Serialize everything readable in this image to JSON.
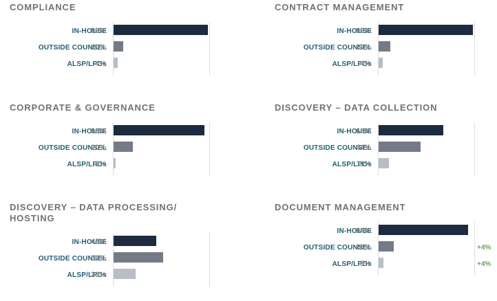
{
  "colors": {
    "in_house": "#1c2b3f",
    "outside_counsel": "#737b86",
    "alsp": "#b7bec5",
    "delta": "#6aa84f"
  },
  "chart_data": [
    {
      "type": "bar",
      "title": "COMPLIANCE",
      "categories": [
        "IN-HOUSE",
        "OUTSIDE COUNSEL",
        "ALSP/LPOs"
      ],
      "values": [
        99,
        10,
        4
      ],
      "value_labels": [
        "99%",
        "10%",
        "4%"
      ],
      "deltas": [
        "",
        "",
        ""
      ]
    },
    {
      "type": "bar",
      "title": "CONTRACT MANAGEMENT",
      "categories": [
        "IN-HOUSE",
        "OUTSIDE COUNSEL",
        "ALSP/LPOs"
      ],
      "values": [
        99,
        12,
        4
      ],
      "value_labels": [
        "99%",
        "12%",
        "4%"
      ],
      "deltas": [
        "",
        "",
        ""
      ]
    },
    {
      "type": "bar",
      "title": "CORPORATE & GOVERNANCE",
      "categories": [
        "IN-HOUSE",
        "OUTSIDE COUNSEL",
        "ALSP/LPOs"
      ],
      "values": [
        96,
        20,
        2
      ],
      "value_labels": [
        "96%",
        "20%",
        "2%"
      ],
      "deltas": [
        "",
        "",
        ""
      ]
    },
    {
      "type": "bar",
      "title": "DISCOVERY – DATA COLLECTION",
      "categories": [
        "IN-HOUSE",
        "OUTSIDE COUNSEL",
        "ALSP/LPOs"
      ],
      "values": [
        68,
        44,
        11
      ],
      "value_labels": [
        "68%",
        "44%",
        "11%"
      ],
      "deltas": [
        "",
        "",
        ""
      ]
    },
    {
      "type": "bar",
      "title": "DISCOVERY – DATA PROCESSING/ HOSTING",
      "categories": [
        "IN-HOUSE",
        "OUTSIDE COUNSEL",
        "ALSP/LPOs"
      ],
      "values": [
        45,
        52,
        23
      ],
      "value_labels": [
        "45%",
        "52%",
        "23%"
      ],
      "deltas": [
        "",
        "",
        ""
      ]
    },
    {
      "type": "bar",
      "title": "DOCUMENT MANAGEMENT",
      "categories": [
        "IN-HOUSE",
        "OUTSIDE COUNSEL",
        "ALSP/LPOs"
      ],
      "values": [
        94,
        16,
        5
      ],
      "value_labels": [
        "94%",
        "16%",
        "5%"
      ],
      "deltas": [
        "",
        "+4%",
        "+4%"
      ]
    }
  ]
}
